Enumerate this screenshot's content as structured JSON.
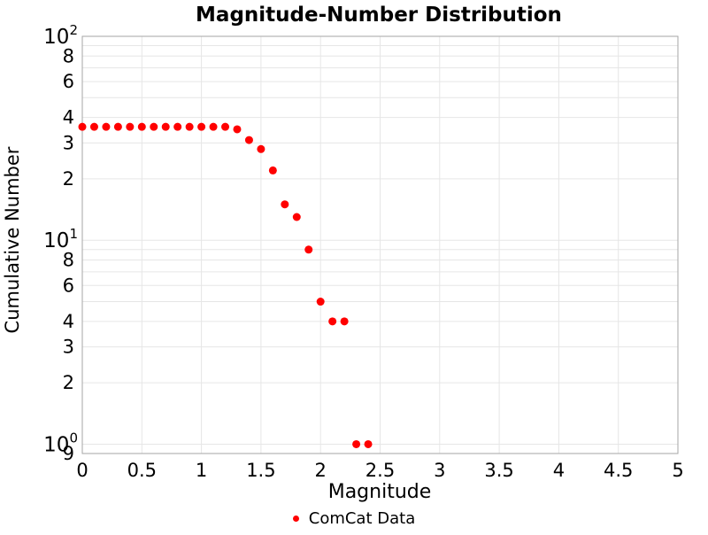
{
  "chart_data": {
    "type": "scatter",
    "title": "Magnitude-Number Distribution",
    "xlabel": "Magnitude",
    "ylabel": "Cumulative Number",
    "series": [
      {
        "name": "ComCat Data",
        "x": [
          0.0,
          0.1,
          0.2,
          0.3,
          0.4,
          0.5,
          0.6,
          0.7,
          0.8,
          0.9,
          1.0,
          1.1,
          1.2,
          1.3,
          1.4,
          1.5,
          1.6,
          1.7,
          1.8,
          1.9,
          2.0,
          2.1,
          2.2,
          2.3,
          2.4
        ],
        "y": [
          36,
          36,
          36,
          36,
          36,
          36,
          36,
          36,
          36,
          36,
          36,
          36,
          36,
          35,
          31,
          28,
          22,
          15,
          13,
          9,
          5,
          4,
          4,
          1,
          1
        ]
      }
    ],
    "xlim": [
      0,
      5
    ],
    "ylim": [
      0.9,
      100
    ],
    "y_scale": "log",
    "grid": true,
    "legend_position": "bottom-center",
    "x_ticks": [
      {
        "value": 0,
        "label": "0"
      },
      {
        "value": 0.5,
        "label": "0.5"
      },
      {
        "value": 1,
        "label": "1"
      },
      {
        "value": 1.5,
        "label": "1.5"
      },
      {
        "value": 2,
        "label": "2"
      },
      {
        "value": 2.5,
        "label": "2.5"
      },
      {
        "value": 3,
        "label": "3"
      },
      {
        "value": 3.5,
        "label": "3.5"
      },
      {
        "value": 4,
        "label": "4"
      },
      {
        "value": 4.5,
        "label": "4.5"
      },
      {
        "value": 5,
        "label": "5"
      }
    ],
    "y_major_ticks": [
      {
        "value": 100,
        "base": "10",
        "exponent": "2"
      },
      {
        "value": 10,
        "base": "10",
        "exponent": "1"
      },
      {
        "value": 1,
        "base": "10",
        "exponent": "0"
      }
    ],
    "y_minor_tick_labels": [
      {
        "value": 80,
        "label": "8"
      },
      {
        "value": 60,
        "label": "6"
      },
      {
        "value": 40,
        "label": "4"
      },
      {
        "value": 30,
        "label": "3"
      },
      {
        "value": 20,
        "label": "2"
      },
      {
        "value": 8,
        "label": "8"
      },
      {
        "value": 6,
        "label": "6"
      },
      {
        "value": 4,
        "label": "4"
      },
      {
        "value": 3,
        "label": "3"
      },
      {
        "value": 2,
        "label": "2"
      },
      {
        "value": 0.9,
        "label": "9"
      }
    ],
    "x_gridlines": [
      0.5,
      1,
      1.5,
      2,
      2.5,
      3,
      3.5,
      4,
      4.5
    ],
    "y_gridlines": [
      90,
      80,
      70,
      60,
      50,
      40,
      30,
      20,
      10,
      9,
      8,
      7,
      6,
      5,
      4,
      3,
      2,
      1
    ],
    "marker_diameter": 9,
    "colors": {
      "marker": "#ff0000",
      "grid": "#e6e6e6",
      "border": "#a6a6a6",
      "text": "#000000"
    }
  },
  "legend": {
    "label": "ComCat Data"
  }
}
